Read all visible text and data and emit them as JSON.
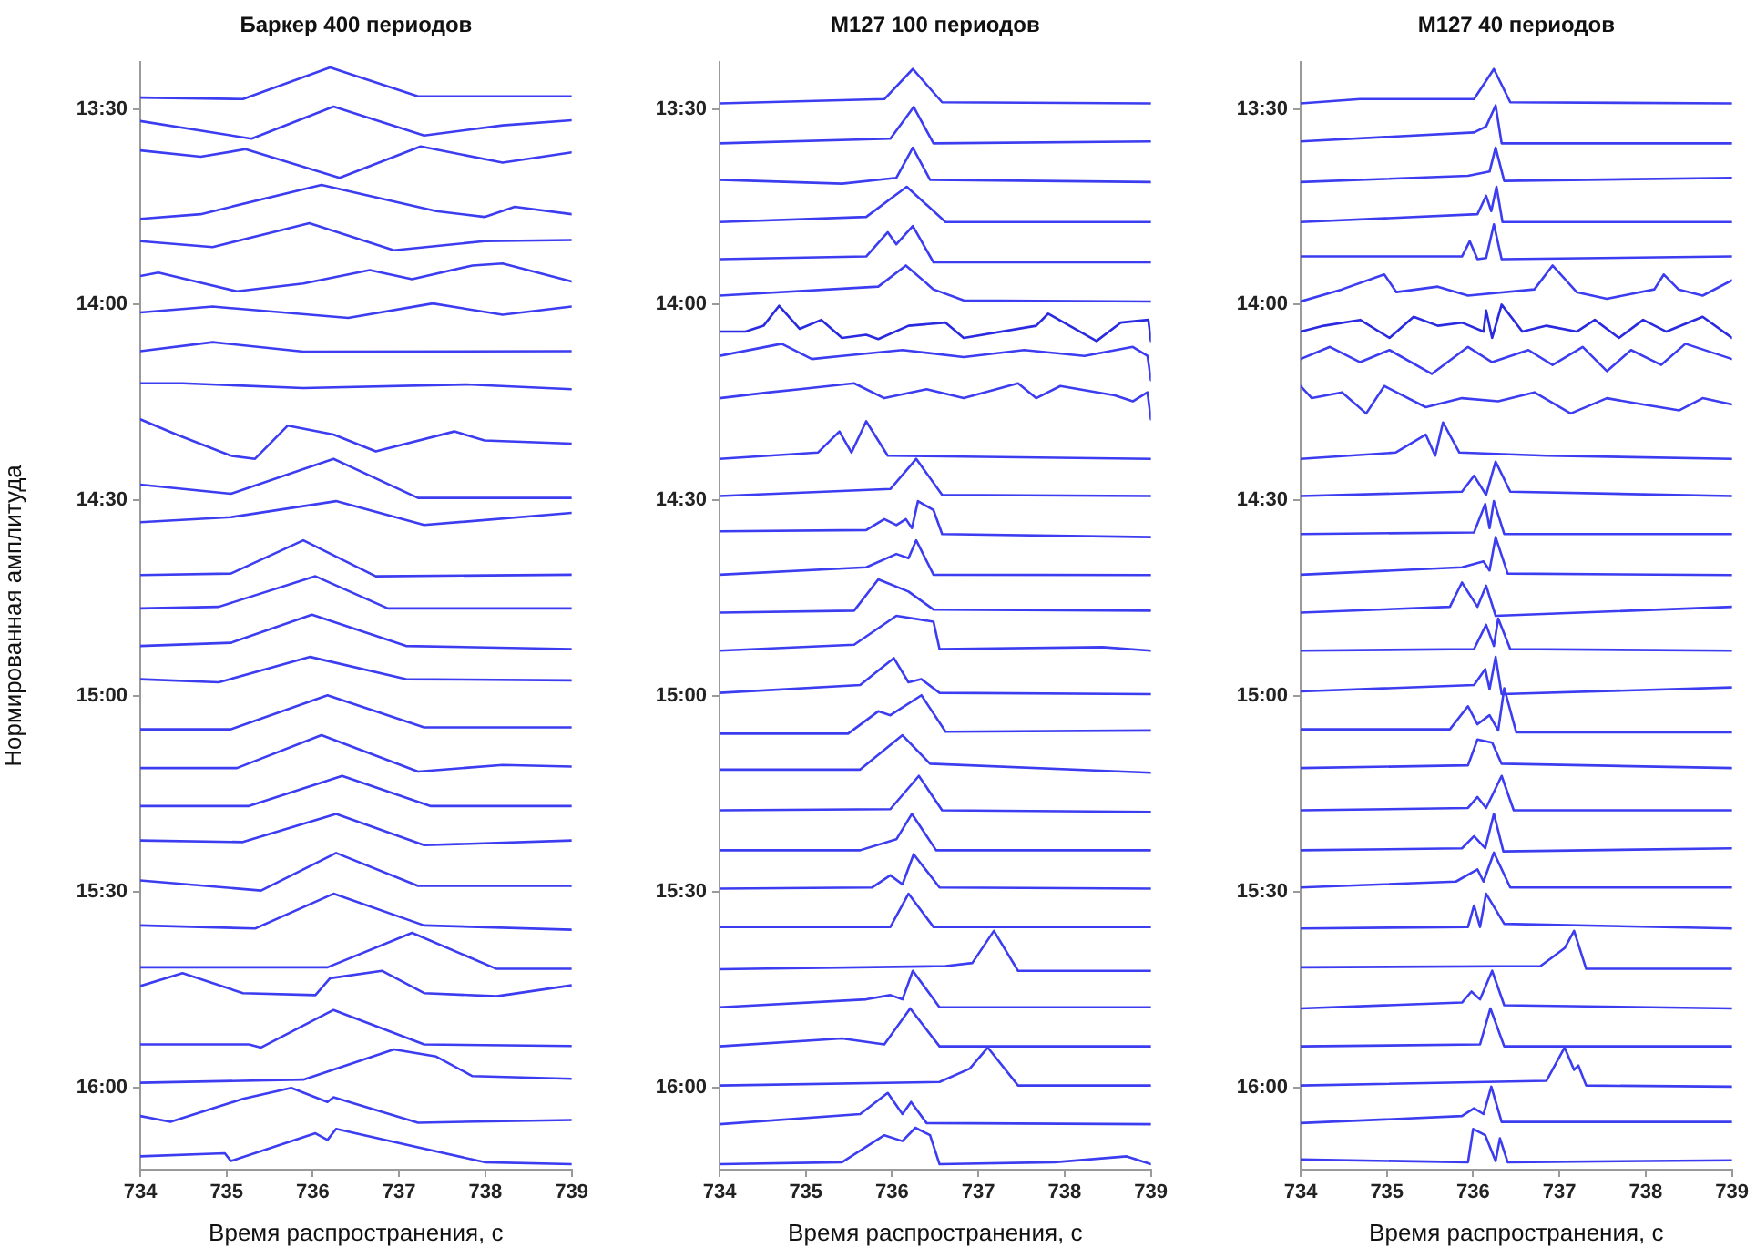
{
  "chart_data": [
    {
      "type": "line",
      "title": "Баркер 400 периодов",
      "xlabel": "Время распространения, с",
      "ylabel": "Нормированная амплитуда",
      "xlim": [
        734,
        739
      ],
      "xticks": [
        734,
        735,
        736,
        737,
        738,
        739
      ],
      "ylim": [
        16.21,
        13.38
      ],
      "yticks": [
        {
          "value": 13.5,
          "label": "13:30"
        },
        {
          "value": 14,
          "label": "14:00"
        },
        {
          "value": 14.5,
          "label": "14:30"
        },
        {
          "value": 15,
          "label": "15:00"
        },
        {
          "value": 15.5,
          "label": "15:30"
        },
        {
          "value": 16,
          "label": "16:00"
        }
      ],
      "grid": false,
      "legend": false,
      "marker": "none",
      "line_style": "solid",
      "series": [
        {
          "color": "#3c3cf0",
          "x": [
            734,
            735.19,
            736.2,
            737.22,
            739
          ],
          "values": [
            13.471,
            13.475,
            13.394,
            13.468,
            13.468
          ]
        },
        {
          "color": "#3c3cf0",
          "x": [
            734,
            735.29,
            736.24,
            737.29,
            738.2,
            739
          ],
          "values": [
            13.531,
            13.576,
            13.494,
            13.568,
            13.542,
            13.529
          ]
        },
        {
          "color": "#3c3cf0",
          "x": [
            734,
            734.7,
            735.22,
            736.31,
            737.25,
            738.2,
            739
          ],
          "values": [
            13.606,
            13.622,
            13.603,
            13.676,
            13.596,
            13.637,
            13.611
          ]
        },
        {
          "color": "#3c3cf0",
          "x": [
            734,
            734.7,
            736.1,
            737.43,
            737.99,
            738.34,
            739
          ],
          "values": [
            13.781,
            13.769,
            13.694,
            13.761,
            13.776,
            13.75,
            13.769
          ]
        },
        {
          "color": "#3c3cf0",
          "x": [
            734,
            734.84,
            735.96,
            736.94,
            737.99,
            739
          ],
          "values": [
            13.838,
            13.853,
            13.792,
            13.861,
            13.838,
            13.835
          ]
        },
        {
          "color": "#3c3cf0",
          "x": [
            734,
            734.21,
            735.12,
            735.89,
            736.66,
            737.15,
            737.85,
            738.2,
            739
          ],
          "values": [
            13.927,
            13.918,
            13.966,
            13.946,
            13.912,
            13.935,
            13.9,
            13.895,
            13.941
          ]
        },
        {
          "color": "#3c3cf0",
          "x": [
            734,
            734.84,
            736.41,
            737.39,
            738.2,
            739
          ],
          "values": [
            14.02,
            14.005,
            14.034,
            13.997,
            14.026,
            14.005
          ]
        },
        {
          "color": "#3c3cf0",
          "x": [
            734,
            734.84,
            735.89,
            739
          ],
          "values": [
            14.119,
            14.096,
            14.12,
            14.119
          ]
        },
        {
          "color": "#3c3cf0",
          "x": [
            734,
            734.49,
            735.89,
            737.78,
            739
          ],
          "values": [
            14.201,
            14.201,
            14.213,
            14.204,
            14.216
          ]
        },
        {
          "color": "#3c3cf0",
          "x": [
            734,
            734.42,
            735.05,
            735.33,
            735.71,
            736.24,
            736.73,
            737.64,
            737.99,
            739
          ],
          "values": [
            14.293,
            14.332,
            14.386,
            14.394,
            14.309,
            14.332,
            14.375,
            14.324,
            14.347,
            14.355
          ]
        },
        {
          "color": "#3c3cf0",
          "x": [
            734,
            735.05,
            736.24,
            737.22,
            739
          ],
          "values": [
            14.46,
            14.483,
            14.394,
            14.494,
            14.494
          ]
        },
        {
          "color": "#3c3cf0",
          "x": [
            734,
            735.05,
            736.27,
            737.29,
            739
          ],
          "values": [
            14.556,
            14.543,
            14.502,
            14.563,
            14.532
          ]
        },
        {
          "color": "#3c3cf0",
          "x": [
            734,
            735.05,
            735.89,
            736.73,
            739
          ],
          "values": [
            14.691,
            14.687,
            14.602,
            14.694,
            14.69
          ]
        },
        {
          "color": "#3c3cf0",
          "x": [
            734,
            734.91,
            736.03,
            736.87,
            739
          ],
          "values": [
            14.776,
            14.772,
            14.694,
            14.776,
            14.776
          ]
        },
        {
          "color": "#3c3cf0",
          "x": [
            734,
            735.05,
            735.99,
            737.08,
            739
          ],
          "values": [
            14.872,
            14.864,
            14.792,
            14.872,
            14.88
          ]
        },
        {
          "color": "#3c3cf0",
          "x": [
            734,
            734.91,
            735.97,
            737.08,
            739
          ],
          "values": [
            14.957,
            14.965,
            14.9,
            14.957,
            14.96
          ]
        },
        {
          "color": "#3c3cf0",
          "x": [
            734,
            735.05,
            736.17,
            737.29,
            739
          ],
          "values": [
            15.085,
            15.085,
            14.998,
            15.08,
            15.08
          ]
        },
        {
          "color": "#3c3cf0",
          "x": [
            734,
            735.12,
            736.1,
            737.22,
            738.2,
            739
          ],
          "values": [
            15.184,
            15.184,
            15.1,
            15.193,
            15.176,
            15.18
          ]
        },
        {
          "color": "#3c3cf0",
          "x": [
            734,
            735.26,
            736.34,
            737.36,
            739
          ],
          "values": [
            15.281,
            15.281,
            15.204,
            15.281,
            15.281
          ]
        },
        {
          "color": "#3c3cf0",
          "x": [
            734,
            735.19,
            736.27,
            737.29,
            739
          ],
          "values": [
            15.369,
            15.373,
            15.301,
            15.381,
            15.369
          ]
        },
        {
          "color": "#3c3cf0",
          "x": [
            734,
            735.4,
            736.27,
            737.22,
            739
          ],
          "values": [
            15.471,
            15.497,
            15.401,
            15.485,
            15.485
          ]
        },
        {
          "color": "#3c3cf0",
          "x": [
            734,
            735.33,
            736.24,
            737.29,
            739
          ],
          "values": [
            15.586,
            15.594,
            15.505,
            15.586,
            15.597
          ]
        },
        {
          "color": "#3c3cf0",
          "x": [
            734,
            736.17,
            737.15,
            738.13,
            739
          ],
          "values": [
            15.693,
            15.693,
            15.605,
            15.697,
            15.697
          ]
        },
        {
          "color": "#3c3cf0",
          "x": [
            734,
            734.49,
            735.19,
            736.03,
            736.2,
            736.8,
            737.29,
            738.13,
            739
          ],
          "values": [
            15.741,
            15.708,
            15.759,
            15.764,
            15.721,
            15.702,
            15.759,
            15.767,
            15.739
          ]
        },
        {
          "color": "#3c3cf0",
          "x": [
            734,
            735.26,
            735.4,
            736.24,
            737.29,
            739
          ],
          "values": [
            15.89,
            15.89,
            15.898,
            15.802,
            15.89,
            15.894
          ]
        },
        {
          "color": "#3c3cf0",
          "x": [
            734,
            735.89,
            736.94,
            737.43,
            737.85,
            739
          ],
          "values": [
            15.988,
            15.98,
            15.903,
            15.921,
            15.971,
            15.978
          ]
        },
        {
          "color": "#3c3cf0",
          "x": [
            734,
            734.35,
            735.19,
            735.75,
            736.17,
            736.24,
            737.22,
            739
          ],
          "values": [
            16.073,
            16.088,
            16.029,
            16.001,
            16.037,
            16.025,
            16.09,
            16.083
          ]
        },
        {
          "color": "#3c3cf0",
          "x": [
            734,
            734.98,
            735.05,
            736.03,
            736.17,
            736.27,
            737.22,
            737.99,
            739
          ],
          "values": [
            16.176,
            16.168,
            16.188,
            16.117,
            16.134,
            16.106,
            16.153,
            16.191,
            16.196
          ]
        }
      ]
    },
    {
      "type": "line",
      "title": "M127 100 периодов",
      "xlabel": "Время распространения, с",
      "xlim": [
        734,
        739
      ],
      "xticks": [
        734,
        735,
        736,
        737,
        738,
        739
      ],
      "ylim": [
        16.21,
        13.38
      ],
      "yticks": [
        {
          "value": 13.5,
          "label": "13:30"
        },
        {
          "value": 14,
          "label": "14:00"
        },
        {
          "value": 14.5,
          "label": "14:30"
        },
        {
          "value": 15,
          "label": "15:00"
        },
        {
          "value": 15.5,
          "label": "15:30"
        },
        {
          "value": 16,
          "label": "16:00"
        }
      ],
      "grid": false,
      "legend": false,
      "marker": "none",
      "line_style": "solid",
      "series": [
        {
          "color": "#3c3cf0",
          "x": [
            734,
            735.91,
            736.24,
            736.58,
            739
          ],
          "values": [
            13.486,
            13.475,
            13.398,
            13.483,
            13.486
          ]
        },
        {
          "color": "#3c3cf0",
          "x": [
            734,
            735.98,
            736.25,
            736.48,
            739
          ],
          "values": [
            13.588,
            13.576,
            13.495,
            13.588,
            13.583
          ]
        },
        {
          "color": "#3c3cf0",
          "x": [
            734,
            735.42,
            736.05,
            736.24,
            736.44,
            739
          ],
          "values": [
            13.681,
            13.691,
            13.676,
            13.599,
            13.681,
            13.687
          ]
        },
        {
          "color": "#3c3cf0",
          "x": [
            734,
            735.7,
            736.17,
            736.62,
            739
          ],
          "values": [
            13.789,
            13.776,
            13.699,
            13.789,
            13.789
          ]
        },
        {
          "color": "#3c3cf0",
          "x": [
            734,
            735.7,
            735.95,
            736.05,
            736.24,
            736.48,
            739
          ],
          "values": [
            13.884,
            13.877,
            13.815,
            13.846,
            13.799,
            13.892,
            13.892
          ]
        },
        {
          "color": "#3c3cf0",
          "x": [
            734,
            735.84,
            736.16,
            736.48,
            736.83,
            739
          ],
          "values": [
            13.977,
            13.954,
            13.9,
            13.961,
            13.989,
            13.992
          ]
        },
        {
          "color": "#2a2ae0",
          "x": [
            734,
            734.3,
            734.51,
            734.69,
            734.93,
            735.18,
            735.42,
            735.7,
            735.84,
            736.19,
            736.62,
            736.83,
            737.67,
            737.81,
            738.37,
            738.65,
            738.97,
            739
          ],
          "values": [
            14.069,
            14.069,
            14.054,
            14.003,
            14.062,
            14.039,
            14.085,
            14.077,
            14.088,
            14.054,
            14.046,
            14.085,
            14.054,
            14.023,
            14.093,
            14.046,
            14.039,
            14.093
          ]
        },
        {
          "color": "#3c3cf0",
          "x": [
            734,
            734.72,
            735.07,
            735.42,
            736.12,
            736.83,
            737.53,
            738.23,
            738.79,
            738.96,
            739
          ],
          "values": [
            14.131,
            14.1,
            14.139,
            14.131,
            14.116,
            14.134,
            14.116,
            14.131,
            14.108,
            14.131,
            14.193
          ]
        },
        {
          "color": "#3c3cf0",
          "x": [
            734,
            734.58,
            734.93,
            735.56,
            735.91,
            736.4,
            736.83,
            737.46,
            737.67,
            737.95,
            738.58,
            738.79,
            738.96,
            739
          ],
          "values": [
            14.239,
            14.224,
            14.216,
            14.201,
            14.239,
            14.216,
            14.239,
            14.201,
            14.239,
            14.208,
            14.232,
            14.247,
            14.224,
            14.293
          ]
        },
        {
          "color": "#3c3cf0",
          "x": [
            734,
            735.14,
            735.39,
            735.53,
            735.7,
            735.95,
            739
          ],
          "values": [
            14.394,
            14.378,
            14.324,
            14.378,
            14.298,
            14.386,
            14.394
          ]
        },
        {
          "color": "#3c3cf0",
          "x": [
            734,
            735.98,
            736.28,
            736.58,
            739
          ],
          "values": [
            14.489,
            14.471,
            14.394,
            14.486,
            14.489
          ]
        },
        {
          "color": "#3c3cf0",
          "x": [
            734,
            735.7,
            735.91,
            736.05,
            736.16,
            736.23,
            736.3,
            736.48,
            736.58,
            739
          ],
          "values": [
            14.579,
            14.576,
            14.548,
            14.563,
            14.548,
            14.571,
            14.502,
            14.525,
            14.586,
            14.594
          ]
        },
        {
          "color": "#3c3cf0",
          "x": [
            734,
            735.7,
            736.05,
            736.19,
            736.28,
            736.48,
            739
          ],
          "values": [
            14.69,
            14.671,
            14.637,
            14.648,
            14.602,
            14.69,
            14.691
          ]
        },
        {
          "color": "#3c3cf0",
          "x": [
            734,
            735.56,
            735.84,
            736.19,
            736.48,
            739
          ],
          "values": [
            14.787,
            14.782,
            14.702,
            14.733,
            14.779,
            14.782
          ]
        },
        {
          "color": "#3c3cf0",
          "x": [
            734,
            735.56,
            736.05,
            736.48,
            736.55,
            738.44,
            739
          ],
          "values": [
            14.884,
            14.869,
            14.795,
            14.81,
            14.88,
            14.875,
            14.884
          ]
        },
        {
          "color": "#3c3cf0",
          "x": [
            734,
            735.63,
            736.02,
            736.19,
            736.34,
            736.55,
            739
          ],
          "values": [
            14.992,
            14.972,
            14.903,
            14.965,
            14.957,
            14.992,
            14.995
          ]
        },
        {
          "color": "#3c3cf0",
          "x": [
            734,
            735.49,
            735.84,
            735.98,
            736.34,
            736.62,
            739
          ],
          "values": [
            15.096,
            15.096,
            15.039,
            15.049,
            14.998,
            15.091,
            15.088
          ]
        },
        {
          "color": "#3c3cf0",
          "x": [
            734,
            735.63,
            736.12,
            736.44,
            739
          ],
          "values": [
            15.188,
            15.188,
            15.1,
            15.173,
            15.196
          ]
        },
        {
          "color": "#3c3cf0",
          "x": [
            734,
            735.98,
            736.31,
            736.58,
            739
          ],
          "values": [
            15.292,
            15.289,
            15.204,
            15.292,
            15.296
          ]
        },
        {
          "color": "#3c3cf0",
          "x": [
            734,
            735.63,
            736.05,
            736.23,
            736.51,
            739
          ],
          "values": [
            15.394,
            15.394,
            15.366,
            15.301,
            15.394,
            15.394
          ]
        },
        {
          "color": "#3c3cf0",
          "x": [
            734,
            735.77,
            735.98,
            736.12,
            736.25,
            736.55,
            739
          ],
          "values": [
            15.492,
            15.489,
            15.458,
            15.481,
            15.404,
            15.489,
            15.492
          ]
        },
        {
          "color": "#3c3cf0",
          "x": [
            734,
            735.98,
            736.19,
            736.48,
            739
          ],
          "values": [
            15.59,
            15.59,
            15.505,
            15.59,
            15.59
          ]
        },
        {
          "color": "#3c3cf0",
          "x": [
            734,
            736.62,
            736.93,
            737.18,
            737.46,
            739
          ],
          "values": [
            15.698,
            15.69,
            15.682,
            15.6,
            15.702,
            15.702
          ]
        },
        {
          "color": "#3c3cf0",
          "x": [
            734,
            735.7,
            735.98,
            736.12,
            736.24,
            736.55,
            739
          ],
          "values": [
            15.795,
            15.775,
            15.764,
            15.775,
            15.702,
            15.795,
            15.795
          ]
        },
        {
          "color": "#3c3cf0",
          "x": [
            734,
            735.42,
            735.91,
            736.21,
            736.55,
            739
          ],
          "values": [
            15.895,
            15.875,
            15.89,
            15.798,
            15.895,
            15.895
          ]
        },
        {
          "color": "#3c3cf0",
          "x": [
            734,
            736.55,
            736.9,
            737.11,
            737.46,
            739
          ],
          "values": [
            15.995,
            15.986,
            15.952,
            15.898,
            15.995,
            15.995
          ]
        },
        {
          "color": "#3c3cf0",
          "x": [
            734,
            735.63,
            735.95,
            736.12,
            736.22,
            736.4,
            739
          ],
          "values": [
            16.094,
            16.068,
            16.014,
            16.068,
            16.037,
            16.091,
            16.094
          ]
        },
        {
          "color": "#3c3cf0",
          "x": [
            734,
            735.42,
            735.91,
            736.12,
            736.27,
            736.44,
            736.55,
            737.88,
            738.72,
            739
          ],
          "values": [
            16.196,
            16.191,
            16.122,
            16.137,
            16.103,
            16.122,
            16.196,
            16.191,
            16.176,
            16.196
          ]
        }
      ]
    },
    {
      "type": "line",
      "title": "M127 40 периодов",
      "xlabel": "Время распространения, с",
      "xlim": [
        734,
        739
      ],
      "xticks": [
        734,
        735,
        736,
        737,
        738,
        739
      ],
      "ylim": [
        16.21,
        13.38
      ],
      "yticks": [
        {
          "value": 13.5,
          "label": "13:30"
        },
        {
          "value": 14,
          "label": "14:00"
        },
        {
          "value": 14.5,
          "label": "14:30"
        },
        {
          "value": 15,
          "label": "15:00"
        },
        {
          "value": 15.5,
          "label": "15:30"
        },
        {
          "value": 16,
          "label": "16:00"
        }
      ],
      "grid": false,
      "legend": false,
      "marker": "none",
      "line_style": "solid",
      "series": [
        {
          "color": "#3c3cf0",
          "x": [
            734,
            734.69,
            736.01,
            736.24,
            736.43,
            739
          ],
          "values": [
            13.486,
            13.475,
            13.475,
            13.398,
            13.483,
            13.486
          ]
        },
        {
          "color": "#3c3cf0",
          "x": [
            734,
            736.01,
            736.15,
            736.26,
            736.33,
            739
          ],
          "values": [
            13.583,
            13.56,
            13.545,
            13.491,
            13.588,
            13.588
          ]
        },
        {
          "color": "#3c3cf0",
          "x": [
            734,
            735.94,
            736.19,
            736.26,
            736.36,
            739
          ],
          "values": [
            13.687,
            13.671,
            13.66,
            13.599,
            13.684,
            13.676
          ]
        },
        {
          "color": "#3c3cf0",
          "x": [
            734,
            736.05,
            736.15,
            736.21,
            736.27,
            736.34,
            739
          ],
          "values": [
            13.789,
            13.769,
            13.722,
            13.761,
            13.699,
            13.789,
            13.789
          ]
        },
        {
          "color": "#3c3cf0",
          "x": [
            734,
            735.87,
            735.96,
            736.05,
            736.15,
            736.24,
            736.33,
            739
          ],
          "values": [
            13.877,
            13.877,
            13.838,
            13.884,
            13.881,
            13.795,
            13.884,
            13.877
          ]
        },
        {
          "color": "#3c3cf0",
          "x": [
            734,
            734.48,
            734.97,
            735.11,
            735.59,
            735.94,
            736.71,
            736.92,
            737.2,
            737.55,
            738.1,
            738.21,
            738.38,
            738.66,
            739
          ],
          "values": [
            13.992,
            13.961,
            13.923,
            13.968,
            13.954,
            13.977,
            13.961,
            13.9,
            13.968,
            13.985,
            13.961,
            13.923,
            13.961,
            13.977,
            13.938
          ]
        },
        {
          "color": "#2a2ae0",
          "x": [
            734,
            734.27,
            734.69,
            735.03,
            735.31,
            735.59,
            735.87,
            736.12,
            736.15,
            736.22,
            736.33,
            736.57,
            736.85,
            737.2,
            737.41,
            737.69,
            737.97,
            738.24,
            738.66,
            739
          ],
          "values": [
            14.069,
            14.054,
            14.039,
            14.085,
            14.031,
            14.054,
            14.046,
            14.069,
            14.015,
            14.085,
            14,
            14.069,
            14.054,
            14.069,
            14.039,
            14.085,
            14.039,
            14.069,
            14.031,
            14.085
          ]
        },
        {
          "color": "#3c3cf0",
          "x": [
            734,
            734.34,
            734.69,
            735.03,
            735.52,
            735.94,
            736.22,
            736.64,
            736.92,
            737.27,
            737.55,
            737.83,
            738.18,
            738.46,
            739
          ],
          "values": [
            14.139,
            14.108,
            14.147,
            14.116,
            14.177,
            14.108,
            14.147,
            14.116,
            14.154,
            14.108,
            14.17,
            14.116,
            14.154,
            14.1,
            14.139
          ]
        },
        {
          "color": "#3c3cf0",
          "x": [
            734,
            734.13,
            734.48,
            734.76,
            734.97,
            735.45,
            735.87,
            736.29,
            736.71,
            737.13,
            737.55,
            737.97,
            738.39,
            738.66,
            739
          ],
          "values": [
            14.208,
            14.239,
            14.224,
            14.278,
            14.208,
            14.262,
            14.239,
            14.247,
            14.224,
            14.278,
            14.239,
            14.255,
            14.27,
            14.239,
            14.255
          ]
        },
        {
          "color": "#3c3cf0",
          "x": [
            734,
            735.1,
            735.45,
            735.56,
            735.65,
            735.84,
            736.85,
            739
          ],
          "values": [
            14.394,
            14.378,
            14.332,
            14.386,
            14.301,
            14.378,
            14.386,
            14.394
          ]
        },
        {
          "color": "#3c3cf0",
          "x": [
            734,
            735.87,
            736.01,
            736.15,
            736.26,
            736.43,
            739
          ],
          "values": [
            14.489,
            14.478,
            14.437,
            14.486,
            14.401,
            14.478,
            14.489
          ]
        },
        {
          "color": "#3c3cf0",
          "x": [
            734,
            736.01,
            736.14,
            736.19,
            736.24,
            736.36,
            739
          ],
          "values": [
            14.586,
            14.582,
            14.509,
            14.571,
            14.502,
            14.586,
            14.586
          ]
        },
        {
          "color": "#3c3cf0",
          "x": [
            734,
            735.87,
            736.12,
            736.19,
            736.26,
            736.4,
            739
          ],
          "values": [
            14.69,
            14.671,
            14.656,
            14.679,
            14.594,
            14.687,
            14.691
          ]
        },
        {
          "color": "#3c3cf0",
          "x": [
            734,
            735.73,
            735.87,
            736.05,
            736.15,
            736.26,
            739
          ],
          "values": [
            14.787,
            14.772,
            14.71,
            14.772,
            14.718,
            14.795,
            14.772
          ]
        },
        {
          "color": "#3c3cf0",
          "x": [
            734,
            736.01,
            736.15,
            736.24,
            736.29,
            736.43,
            739
          ],
          "values": [
            14.884,
            14.88,
            14.818,
            14.872,
            14.802,
            14.88,
            14.884
          ]
        },
        {
          "color": "#3c3cf0",
          "x": [
            734,
            736.01,
            736.14,
            736.19,
            736.26,
            736.33,
            739
          ],
          "values": [
            14.988,
            14.972,
            14.931,
            14.983,
            14.9,
            14.995,
            14.978
          ]
        },
        {
          "color": "#3c3cf0",
          "x": [
            734,
            735.73,
            735.94,
            736.05,
            736.19,
            736.29,
            736.36,
            736.5,
            739
          ],
          "values": [
            15.085,
            15.085,
            15.026,
            15.072,
            15.049,
            15.088,
            14.98,
            15.093,
            15.093
          ]
        },
        {
          "color": "#3c3cf0",
          "x": [
            734,
            735.94,
            736.05,
            736.22,
            736.33,
            739
          ],
          "values": [
            15.184,
            15.177,
            15.111,
            15.119,
            15.173,
            15.184
          ]
        },
        {
          "color": "#3c3cf0",
          "x": [
            734,
            735.94,
            736.05,
            736.15,
            736.33,
            736.47,
            739
          ],
          "values": [
            15.292,
            15.286,
            15.258,
            15.286,
            15.204,
            15.292,
            15.292
          ]
        },
        {
          "color": "#3c3cf0",
          "x": [
            734,
            735.87,
            736.01,
            736.14,
            736.24,
            736.35,
            739
          ],
          "values": [
            15.394,
            15.389,
            15.358,
            15.389,
            15.301,
            15.397,
            15.389
          ]
        },
        {
          "color": "#3c3cf0",
          "x": [
            734,
            735.8,
            736.05,
            736.12,
            736.24,
            736.43,
            739
          ],
          "values": [
            15.489,
            15.474,
            15.443,
            15.474,
            15.4,
            15.489,
            15.489
          ]
        },
        {
          "color": "#3c3cf0",
          "x": [
            734,
            735.94,
            736.01,
            736.08,
            736.15,
            736.36,
            739
          ],
          "values": [
            15.594,
            15.59,
            15.535,
            15.59,
            15.505,
            15.582,
            15.594
          ]
        },
        {
          "color": "#3c3cf0",
          "x": [
            734,
            736.78,
            736.92,
            737.06,
            737.17,
            737.31,
            739
          ],
          "values": [
            15.693,
            15.69,
            15.667,
            15.644,
            15.6,
            15.697,
            15.697
          ]
        },
        {
          "color": "#3c3cf0",
          "x": [
            734,
            735.87,
            735.98,
            736.08,
            736.22,
            736.36,
            739
          ],
          "values": [
            15.798,
            15.783,
            15.755,
            15.775,
            15.702,
            15.79,
            15.798
          ]
        },
        {
          "color": "#3c3cf0",
          "x": [
            734,
            736.08,
            736.2,
            736.36,
            739
          ],
          "values": [
            15.895,
            15.89,
            15.798,
            15.895,
            15.895
          ]
        },
        {
          "color": "#3c3cf0",
          "x": [
            734,
            736.85,
            737.06,
            737.17,
            737.22,
            737.31,
            739
          ],
          "values": [
            15.995,
            15.983,
            15.898,
            15.955,
            15.944,
            15.995,
            15.998
          ]
        },
        {
          "color": "#3c3cf0",
          "x": [
            734,
            735.87,
            736.01,
            736.12,
            736.21,
            736.33,
            739
          ],
          "values": [
            16.091,
            16.073,
            16.053,
            16.068,
            15.998,
            16.088,
            16.088
          ]
        },
        {
          "color": "#3c3cf0",
          "x": [
            734,
            735.94,
            736,
            736.14,
            736.26,
            736.31,
            736.4,
            739
          ],
          "values": [
            16.184,
            16.191,
            16.106,
            16.122,
            16.188,
            16.13,
            16.191,
            16.186
          ]
        }
      ]
    }
  ]
}
